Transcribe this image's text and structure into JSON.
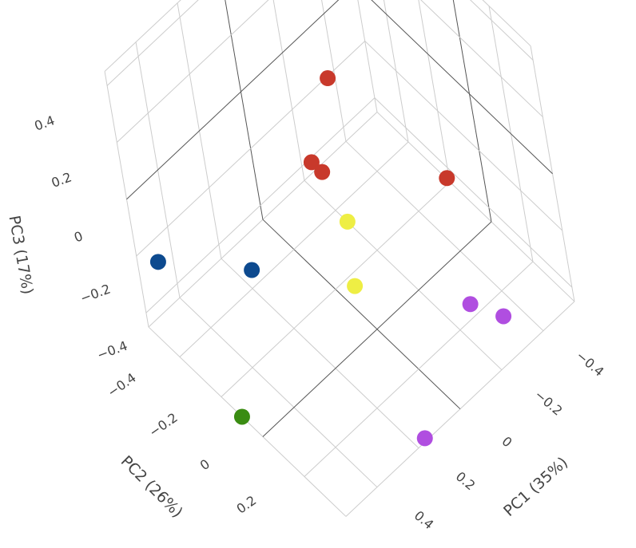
{
  "chart_data": {
    "type": "scatter3d",
    "x_title": "PC1 (35%)",
    "y_title": "PC2 (26%)",
    "z_title": "PC3 (17%)",
    "x": [
      -0.065,
      0.127,
      0.126,
      -0.222,
      0.07,
      0.155,
      0.5,
      0.365,
      0.55,
      -0.2,
      -0.31,
      0.16
    ],
    "y": [
      -0.127,
      -0.036,
      0.014,
      0.243,
      0.033,
      0.13,
      -0.5,
      -0.156,
      -0.1,
      0.284,
      0.31,
      0.39
    ],
    "z": [
      0.3,
      0.2,
      0.2,
      0.1,
      0,
      -0.1,
      -0.22,
      -0.1,
      -0.45,
      -0.3,
      -0.4,
      -0.45
    ],
    "colors": [
      "#c8392b",
      "#c8392b",
      "#c8392b",
      "#c8392b",
      "#eeee44",
      "#eeee44",
      "#0d4a8f",
      "#0d4a8f",
      "#3a8c12",
      "#b04ee0",
      "#b04ee0",
      "#b04ee0"
    ],
    "xlim": [
      -0.55,
      0.55
    ],
    "ylim": [
      -0.55,
      0.4
    ],
    "zlim": [
      -0.45,
      0.45
    ],
    "xticks": [
      {
        "value": -0.4,
        "label": "−0.4"
      },
      {
        "value": -0.2,
        "label": "−0.2"
      },
      0,
      0.2,
      0.4
    ],
    "yticks": [
      {
        "value": -0.4,
        "label": "−0.4"
      },
      {
        "value": -0.2,
        "label": "−0.2"
      },
      0,
      0.2
    ],
    "zticks": [
      {
        "value": -0.4,
        "label": "−0.4"
      },
      {
        "value": -0.2,
        "label": "−0.2"
      },
      0,
      0.2,
      0.4
    ],
    "grid": true
  }
}
